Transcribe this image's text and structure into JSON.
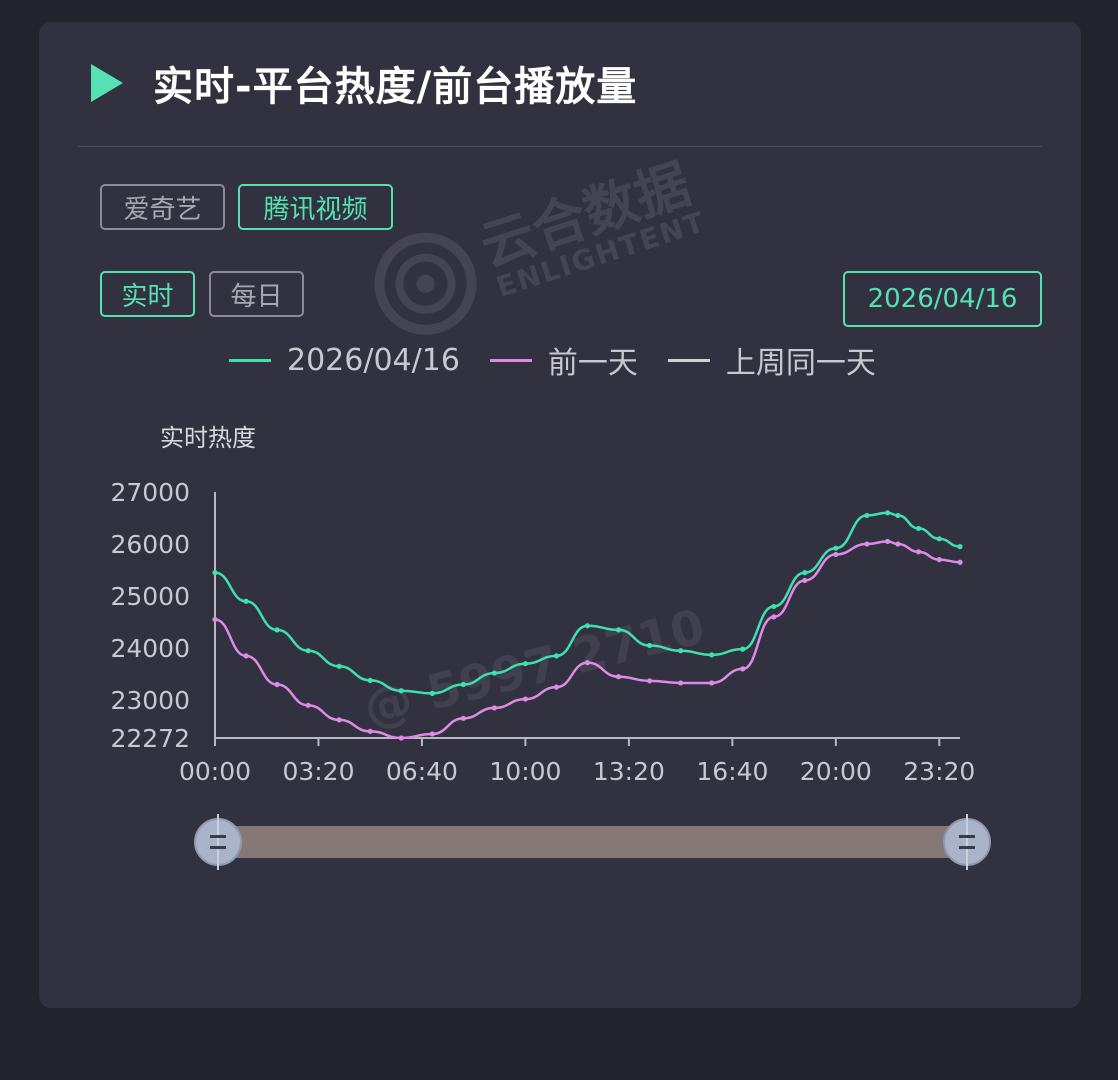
{
  "header": {
    "title": "实时-平台热度/前台播放量",
    "play_icon": "play-triangle-icon"
  },
  "platform_tabs": [
    {
      "label": "爱奇艺",
      "active": false
    },
    {
      "label": "腾讯视频",
      "active": true
    }
  ],
  "mode_tabs": [
    {
      "label": "实时",
      "active": true
    },
    {
      "label": "每日",
      "active": false
    }
  ],
  "date_button": {
    "label": "2026/04/16"
  },
  "watermark": {
    "brand": "云合数据",
    "brand_en": "ENLIGHTENT",
    "user": "@ 5997 2710"
  },
  "colors": {
    "accent": "#55e1b2",
    "series_today": "#3fe0b0",
    "series_prev": "#de8be8",
    "series_week": "#d0d0d0"
  },
  "chart_data": {
    "type": "line",
    "ylabel": "实时热度",
    "ylim": [
      22272,
      27000
    ],
    "yticks": [
      "27000",
      "26000",
      "25000",
      "24000",
      "23000",
      "22272"
    ],
    "xticks": [
      "00:00",
      "03:20",
      "06:40",
      "10:00",
      "13:20",
      "16:40",
      "20:00",
      "23:20"
    ],
    "x_minutes_range": [
      0,
      1440
    ],
    "grid": false,
    "legend_position": "top",
    "series": [
      {
        "name": "2026/04/16",
        "color": "#3fe0b0",
        "x_minutes": [
          0,
          60,
          120,
          180,
          240,
          300,
          360,
          420,
          480,
          540,
          600,
          660,
          720,
          780,
          840,
          900,
          960,
          1020,
          1080,
          1140,
          1200,
          1260,
          1300,
          1320,
          1360,
          1400,
          1440
        ],
        "values": [
          25450,
          24900,
          24350,
          23950,
          23650,
          23380,
          23180,
          23130,
          23300,
          23520,
          23700,
          23850,
          24430,
          24350,
          24050,
          23950,
          23870,
          23980,
          24800,
          25450,
          25920,
          26550,
          26600,
          26550,
          26300,
          26100,
          25950
        ]
      },
      {
        "name": "前一天",
        "color": "#de8be8",
        "x_minutes": [
          0,
          60,
          120,
          180,
          240,
          300,
          360,
          420,
          480,
          540,
          600,
          660,
          720,
          780,
          840,
          900,
          960,
          1020,
          1080,
          1140,
          1200,
          1260,
          1300,
          1320,
          1360,
          1400,
          1440
        ],
        "values": [
          24550,
          23850,
          23300,
          22900,
          22620,
          22400,
          22272,
          22350,
          22650,
          22850,
          23020,
          23250,
          23720,
          23450,
          23370,
          23330,
          23330,
          23600,
          24600,
          25300,
          25800,
          26000,
          26050,
          26000,
          25850,
          25700,
          25650
        ]
      },
      {
        "name": "上周同一天",
        "color": "#d0d0d0",
        "x_minutes": [],
        "values": []
      }
    ]
  }
}
